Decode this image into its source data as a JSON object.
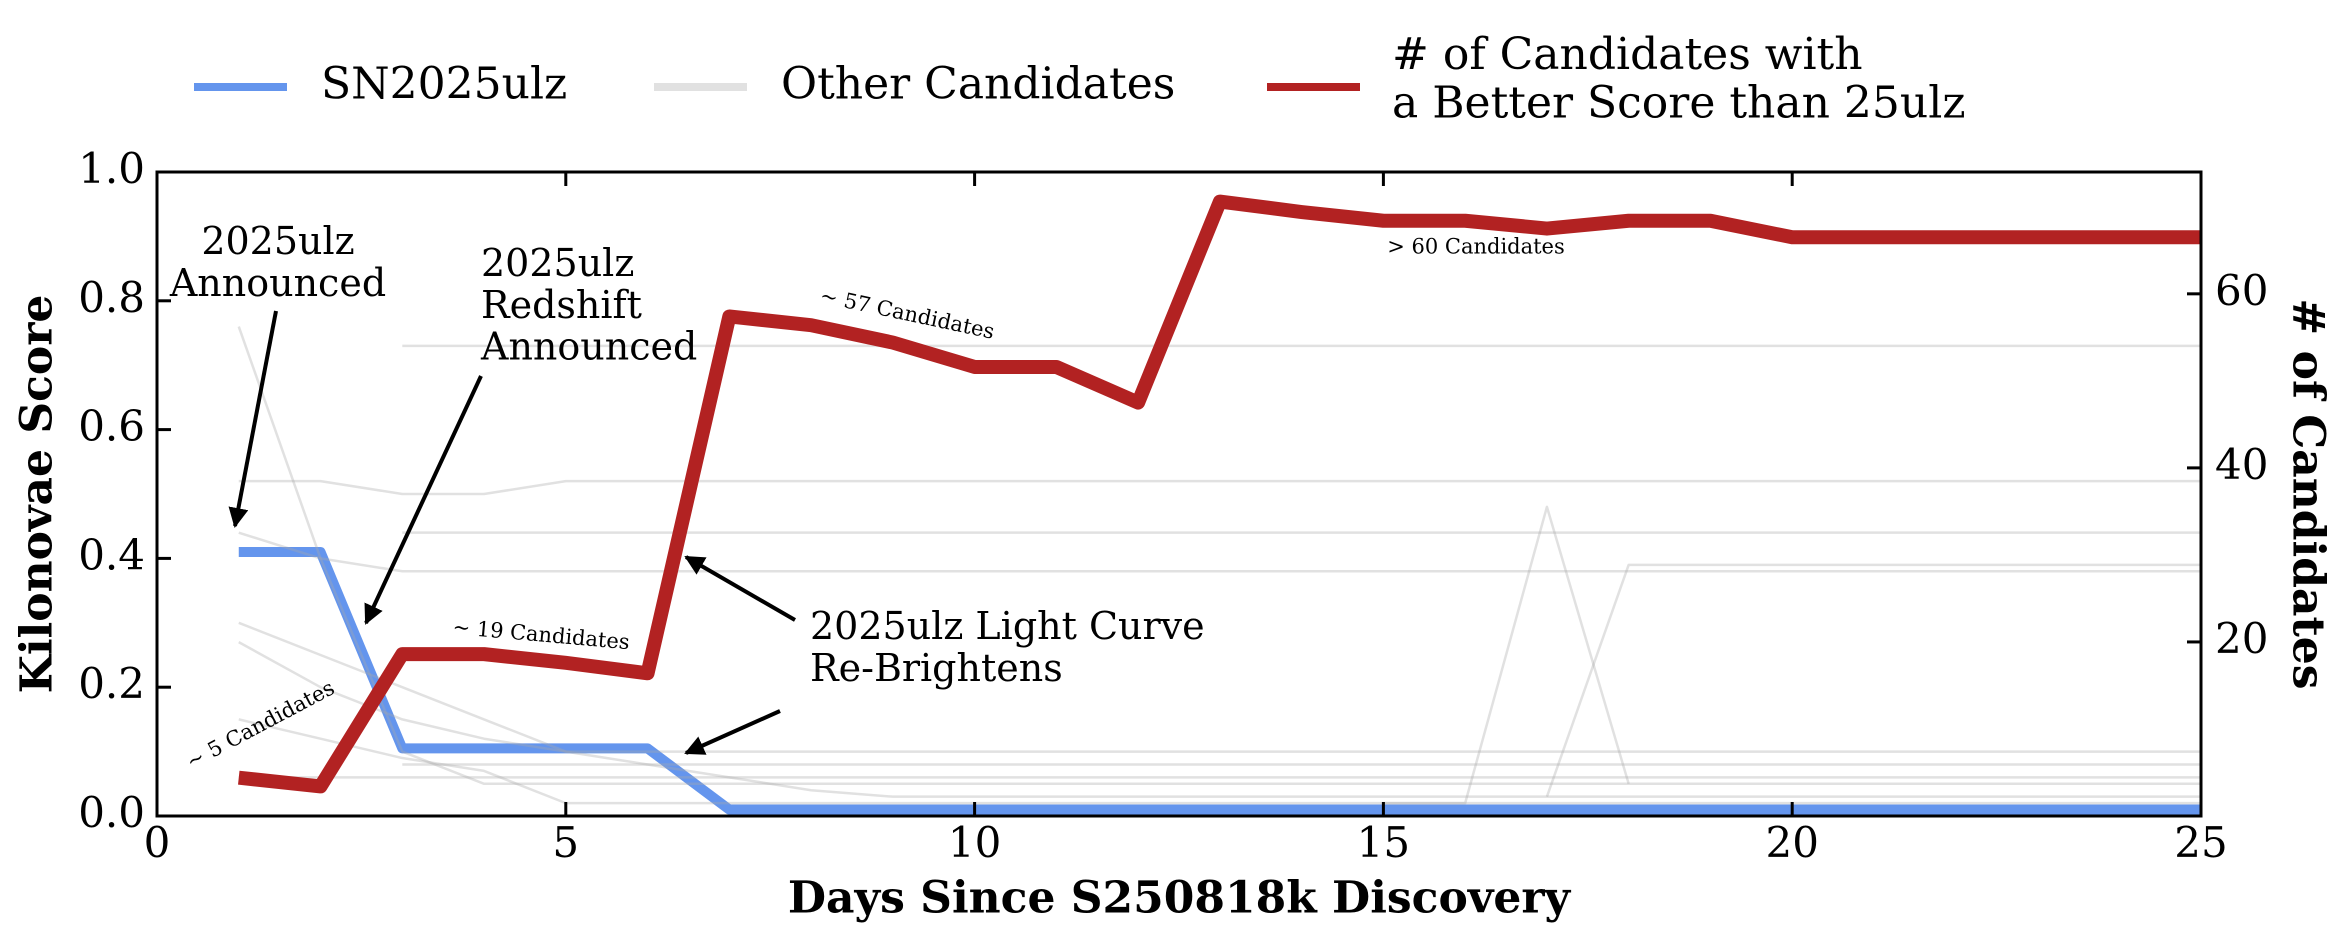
{
  "chart_data": {
    "type": "line",
    "xlabel": "Days Since S250818k Discovery",
    "ylabel": "Kilonovae Score",
    "y2label": "# of Candidates",
    "x": [
      1,
      2,
      3,
      4,
      5,
      6,
      7,
      8,
      9,
      10,
      11,
      12,
      13,
      14,
      15,
      16,
      17,
      18,
      19,
      20,
      21,
      22,
      23,
      24,
      25
    ],
    "xlim": [
      0,
      25
    ],
    "xticks": [
      0,
      5,
      10,
      15,
      20,
      25
    ],
    "ylim": [
      0,
      1
    ],
    "yticks": [
      {
        "value": 0,
        "label": "0.0"
      },
      {
        "value": 0.2,
        "label": "0.2"
      },
      {
        "value": 0.4,
        "label": "0.4"
      },
      {
        "value": 0.6,
        "label": "0.6"
      },
      {
        "value": 0.8,
        "label": "0.8"
      },
      {
        "value": 1,
        "label": "1.0"
      }
    ],
    "y2lim": [
      0,
      74
    ],
    "y2ticks": [
      20,
      40,
      60
    ],
    "legend": "top",
    "series": [
      {
        "name": "SN2025ulz",
        "color": "#6495ed",
        "values": [
          0.41,
          0.41,
          0.105,
          0.105,
          0.105,
          0.105,
          0.01,
          0.01,
          0.01,
          0.01,
          0.01,
          0.01,
          0.01,
          0.01,
          0.01,
          0.01,
          0.01,
          0.01,
          0.01,
          0.01,
          0.01,
          0.01,
          0.01,
          0.01,
          0.01
        ]
      },
      {
        "name": "Other Candidates",
        "color": "#aaaaaa",
        "lines": [
          [
            null,
            null,
            0.73,
            0.73,
            0.73,
            0.73,
            0.73,
            0.73,
            0.73,
            0.73,
            0.73,
            0.73,
            0.73,
            0.73,
            0.73,
            0.73,
            0.73,
            0.73,
            0.73,
            0.73,
            0.73,
            0.73,
            0.73,
            0.73,
            0.73
          ],
          [
            0.52,
            0.52,
            0.5,
            0.5,
            0.52,
            0.52,
            0.52,
            0.52,
            0.52,
            0.52,
            0.52,
            0.52,
            0.52,
            0.52,
            0.52,
            0.52,
            0.52,
            0.52,
            0.52,
            0.52,
            0.52,
            0.52,
            0.52,
            0.52,
            0.52
          ],
          [
            0.44,
            0.4,
            0.38,
            0.38,
            0.38,
            0.38,
            0.38,
            0.38,
            0.38,
            0.38,
            0.38,
            0.38,
            0.38,
            0.38,
            0.38,
            0.38,
            0.38,
            0.38,
            0.38,
            0.38,
            0.38,
            0.38,
            0.38,
            0.38,
            0.38
          ],
          [
            0.27,
            0.2,
            0.15,
            0.12,
            0.1,
            0.1,
            0.1,
            0.1,
            0.1,
            0.1,
            0.1,
            0.1,
            0.1,
            0.1,
            0.1,
            0.1,
            0.1,
            0.1,
            0.1,
            0.1,
            0.1,
            0.1,
            0.1,
            0.1,
            0.1
          ],
          [
            0.76,
            0.4,
            0.1,
            0.05,
            0.05,
            0.05,
            0.05,
            0.05,
            0.05,
            0.05,
            0.05,
            0.05,
            0.05,
            0.05,
            0.05,
            0.05,
            0.05,
            0.05,
            0.05,
            0.05,
            0.05,
            0.05,
            0.05,
            0.05,
            0.05
          ],
          [
            null,
            null,
            null,
            null,
            null,
            null,
            null,
            null,
            null,
            null,
            null,
            null,
            null,
            null,
            0.02,
            0.02,
            0.48,
            0.05,
            null,
            null,
            null,
            null,
            null,
            null,
            null
          ],
          [
            null,
            null,
            null,
            null,
            null,
            null,
            null,
            null,
            null,
            null,
            null,
            null,
            null,
            null,
            null,
            null,
            0.03,
            0.39,
            0.39,
            0.39,
            0.39,
            0.39,
            0.39,
            0.39,
            0.39
          ],
          [
            0.06,
            0.06,
            0.06,
            0.06,
            0.06,
            0.06,
            0.06,
            0.06,
            0.06,
            0.06,
            0.06,
            0.06,
            0.06,
            0.06,
            0.06,
            0.06,
            0.06,
            0.06,
            0.06,
            0.06,
            0.06,
            0.06,
            0.06,
            0.06,
            0.06
          ],
          [
            null,
            null,
            0.08,
            0.08,
            0.08,
            0.08,
            0.08,
            0.08,
            0.08,
            0.08,
            0.08,
            0.08,
            0.08,
            0.08,
            0.08,
            0.08,
            0.08,
            0.08,
            0.08,
            0.08,
            0.08,
            0.08,
            0.08,
            0.08,
            0.08
          ],
          [
            0.3,
            0.25,
            0.2,
            0.15,
            0.1,
            0.08,
            0.06,
            0.04,
            0.03,
            0.03,
            0.03,
            0.03,
            0.03,
            0.03,
            0.03,
            0.03,
            0.03,
            0.03,
            0.03,
            0.03,
            0.03,
            0.03,
            0.03,
            0.03,
            0.03
          ],
          [
            null,
            null,
            0.44,
            0.44,
            0.44,
            0.44,
            0.44,
            0.44,
            0.44,
            0.44,
            0.44,
            0.44,
            0.44,
            0.44,
            0.44,
            0.44,
            0.44,
            0.44,
            0.44,
            0.44,
            0.44,
            0.44,
            0.44,
            0.44,
            0.44
          ],
          [
            0.15,
            0.12,
            0.09,
            0.07,
            0.02,
            0.02,
            0.02,
            0.02,
            0.02,
            0.02,
            0.02,
            0.02,
            0.02,
            0.02,
            0.02,
            0.02,
            0.02,
            0.02,
            0.02,
            0.02,
            0.02,
            0.02,
            0.02,
            0.02,
            0.02
          ]
        ]
      },
      {
        "name": "# of Candidates with\na Better Score than 25ulz",
        "color": "#b22222",
        "axis": "y2",
        "values": [
          4.4,
          3.4,
          18.6,
          18.6,
          17.6,
          16.4,
          57.4,
          56.4,
          54.4,
          51.6,
          51.6,
          47.5,
          70.6,
          69.4,
          68.4,
          68.4,
          67.5,
          68.4,
          68.4,
          66.5,
          66.5,
          66.5,
          66.5,
          66.5,
          66.5
        ]
      }
    ],
    "annotations": [
      {
        "text": "2025ulz\nAnnounced"
      },
      {
        "text": "2025ulz\nRedshift\nAnnounced"
      },
      {
        "text": "2025ulz Light Curve\nRe-Brightens"
      },
      {
        "text": "~ 5 Candidates"
      },
      {
        "text": "~ 19 Candidates"
      },
      {
        "text": "~ 57 Candidates"
      },
      {
        "text": "> 60 Candidates"
      }
    ]
  }
}
